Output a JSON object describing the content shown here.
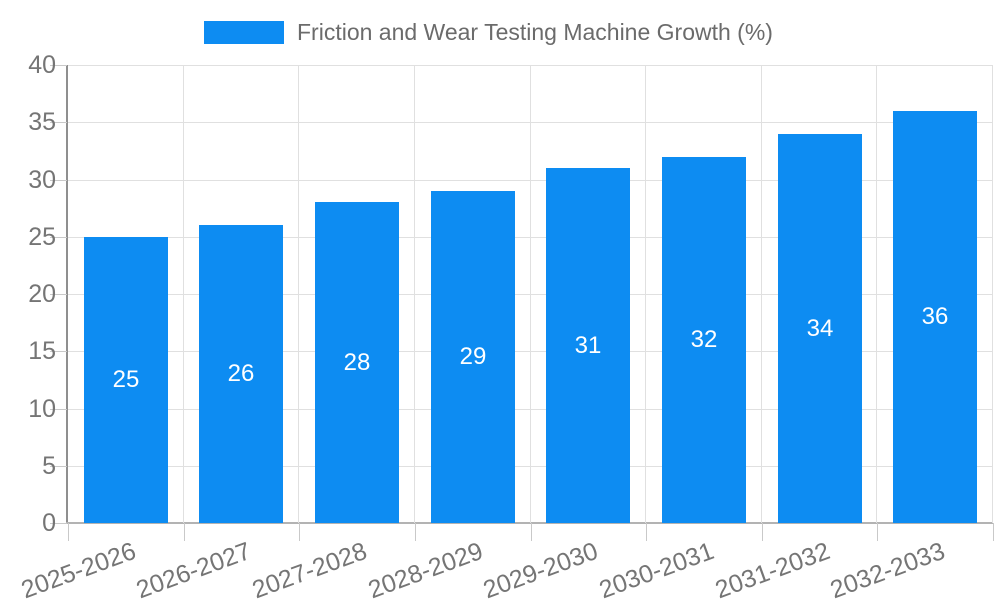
{
  "chart_data": {
    "type": "bar",
    "title": "Friction and Wear Testing Machine Growth (%)",
    "categories": [
      "2025-2026",
      "2026-2027",
      "2027-2028",
      "2028-2029",
      "2029-2030",
      "2030-2031",
      "2031-2032",
      "2032-2033"
    ],
    "values": [
      25,
      26,
      28,
      29,
      31,
      32,
      34,
      36
    ],
    "xlabel": "",
    "ylabel": "",
    "ylim": [
      0,
      40
    ],
    "yticks": [
      0,
      5,
      10,
      15,
      20,
      25,
      30,
      35,
      40
    ],
    "grid": true,
    "legend_position": "top",
    "colors": {
      "bar": "#0d8cf2",
      "value_label": "#ffffff",
      "axis_label": "#757575",
      "legend_text": "#6b6b6b",
      "gridline": "#e0e0e0"
    }
  }
}
